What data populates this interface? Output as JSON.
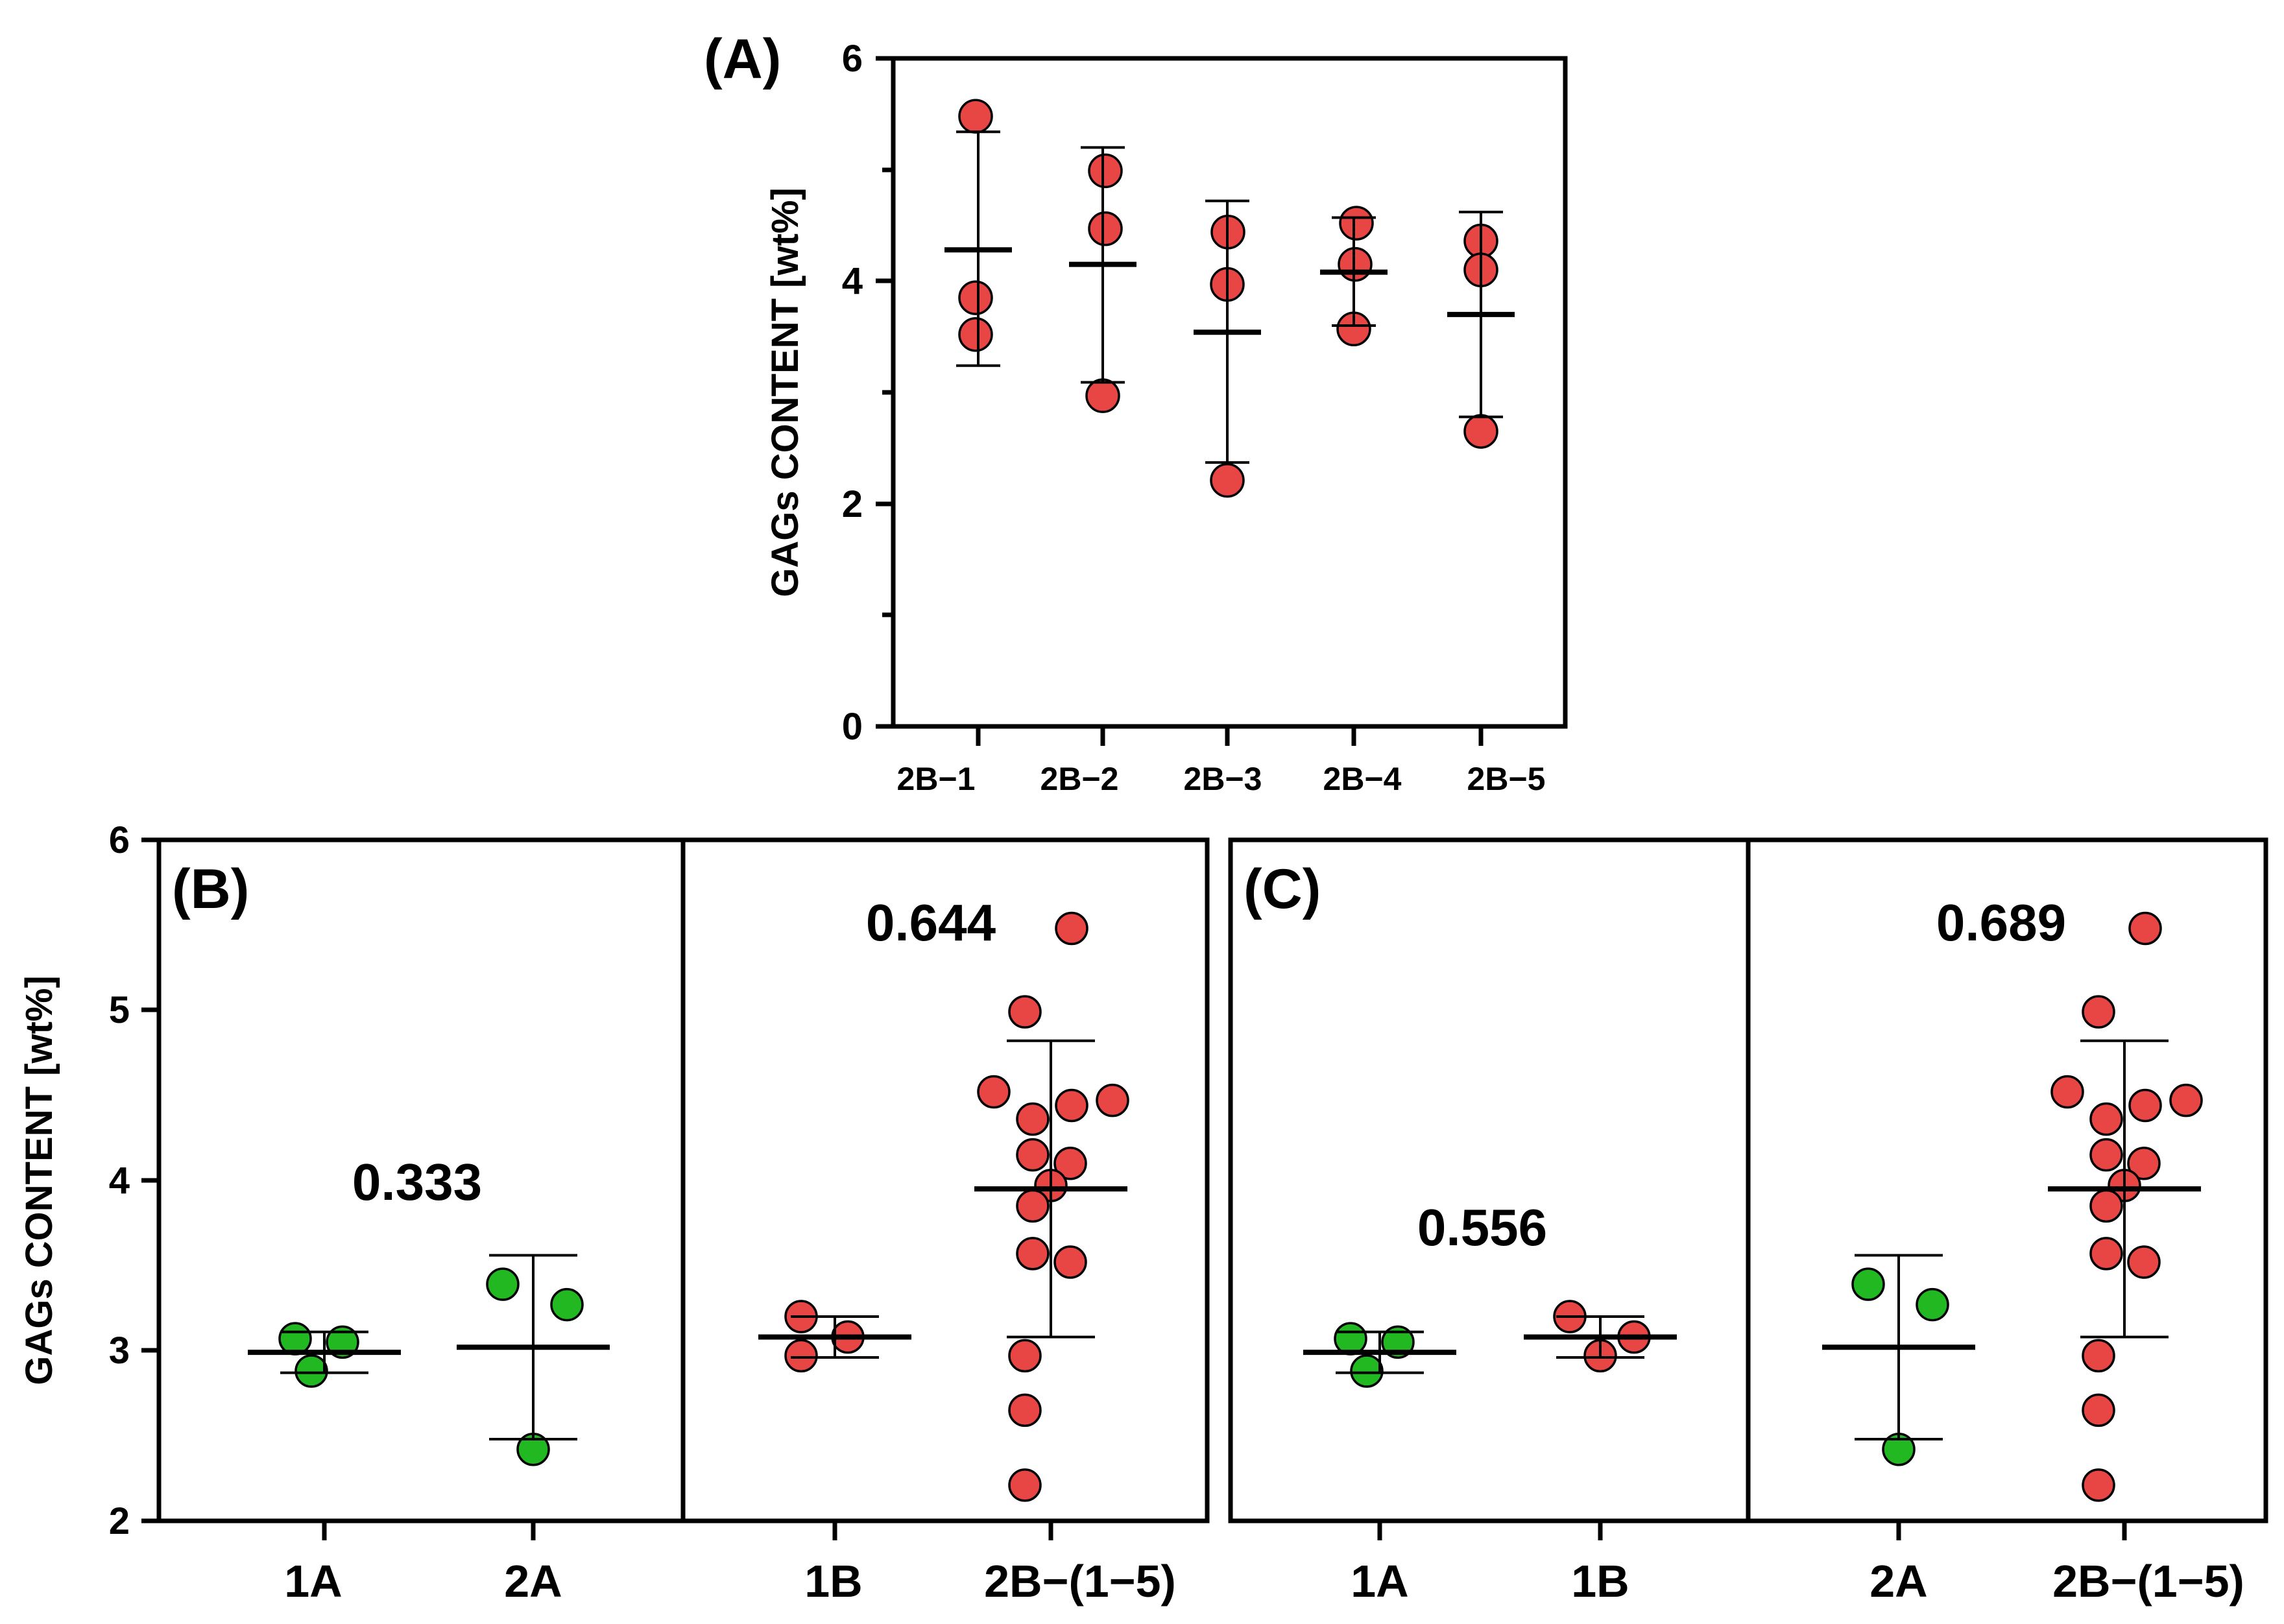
{
  "chart_data": [
    {
      "id": "A",
      "type": "scatter",
      "title": "(A)",
      "ylabel": "GAGs CONTENT [wt%]",
      "xlabel": "",
      "ylim": [
        0,
        6
      ],
      "yticks": [
        0,
        2,
        4,
        6
      ],
      "categories": [
        "2B−1",
        "2B−2",
        "2B−3",
        "2B−4",
        "2B−5"
      ],
      "color": "#e84545",
      "series": [
        {
          "name": "2B−1",
          "points": [
            5.48,
            3.85,
            3.52
          ],
          "mean": 4.28,
          "sd_low": 3.24,
          "sd_high": 5.34
        },
        {
          "name": "2B−2",
          "points": [
            4.99,
            4.47,
            2.97
          ],
          "mean": 4.15,
          "sd_low": 3.09,
          "sd_high": 5.2
        },
        {
          "name": "2B−3",
          "points": [
            4.44,
            3.97,
            2.21
          ],
          "mean": 3.54,
          "sd_low": 2.37,
          "sd_high": 4.72
        },
        {
          "name": "2B−4",
          "points": [
            4.52,
            4.15,
            3.57
          ],
          "mean": 4.08,
          "sd_low": 3.6,
          "sd_high": 4.57
        },
        {
          "name": "2B−5",
          "points": [
            4.36,
            4.1,
            2.65
          ],
          "mean": 3.7,
          "sd_low": 2.78,
          "sd_high": 4.62
        }
      ]
    },
    {
      "id": "B",
      "type": "scatter",
      "title": "(B)",
      "ylabel": "GAGs CONTENT [wt%]",
      "xlabel": "",
      "ylim": [
        2,
        6
      ],
      "yticks": [
        2,
        3,
        4,
        5,
        6
      ],
      "categories": [
        "1A",
        "2A",
        "1B",
        "2B−(1−5)"
      ],
      "comparisons": [
        {
          "groups": [
            "1A",
            "2A"
          ],
          "p_value": "0.333"
        },
        {
          "groups": [
            "1B",
            "2B−(1−5)"
          ],
          "p_value": "0.644"
        }
      ],
      "series": [
        {
          "name": "1A",
          "color": "#22b822",
          "points": [
            3.07,
            3.05,
            2.88
          ],
          "mean": 2.99,
          "sd_low": 2.87,
          "sd_high": 3.11
        },
        {
          "name": "2A",
          "color": "#22b822",
          "points": [
            3.39,
            3.27,
            2.42
          ],
          "mean": 3.02,
          "sd_low": 2.48,
          "sd_high": 3.56
        },
        {
          "name": "1B",
          "color": "#e84545",
          "points": [
            3.2,
            3.08,
            2.97
          ],
          "mean": 3.08,
          "sd_low": 2.96,
          "sd_high": 3.2
        },
        {
          "name": "2B−(1−5)",
          "color": "#e84545",
          "points": [
            5.48,
            4.99,
            4.52,
            4.47,
            4.44,
            4.36,
            4.15,
            4.1,
            3.97,
            3.85,
            3.57,
            3.52,
            2.97,
            2.65,
            2.21
          ],
          "mean": 3.95,
          "sd_low": 3.08,
          "sd_high": 4.82
        }
      ]
    },
    {
      "id": "C",
      "type": "scatter",
      "title": "(C)",
      "ylabel": "",
      "xlabel": "",
      "ylim": [
        2,
        6
      ],
      "yticks": [
        2,
        3,
        4,
        5,
        6
      ],
      "categories": [
        "1A",
        "1B",
        "2A",
        "2B−(1−5)"
      ],
      "comparisons": [
        {
          "groups": [
            "1A",
            "1B"
          ],
          "p_value": "0.556"
        },
        {
          "groups": [
            "2A",
            "2B−(1−5)"
          ],
          "p_value": "0.689"
        }
      ],
      "series": [
        {
          "name": "1A",
          "color": "#22b822",
          "points": [
            3.07,
            3.05,
            2.88
          ],
          "mean": 2.99,
          "sd_low": 2.87,
          "sd_high": 3.11
        },
        {
          "name": "1B",
          "color": "#e84545",
          "points": [
            3.2,
            3.08,
            2.97
          ],
          "mean": 3.08,
          "sd_low": 2.96,
          "sd_high": 3.2
        },
        {
          "name": "2A",
          "color": "#22b822",
          "points": [
            3.39,
            3.27,
            2.42
          ],
          "mean": 3.02,
          "sd_low": 2.48,
          "sd_high": 3.56
        },
        {
          "name": "2B−(1−5)",
          "color": "#e84545",
          "points": [
            5.48,
            4.99,
            4.52,
            4.47,
            4.44,
            4.36,
            4.15,
            4.1,
            3.97,
            3.85,
            3.57,
            3.52,
            2.97,
            2.65,
            2.21
          ],
          "mean": 3.95,
          "sd_low": 3.08,
          "sd_high": 4.82
        }
      ]
    }
  ]
}
